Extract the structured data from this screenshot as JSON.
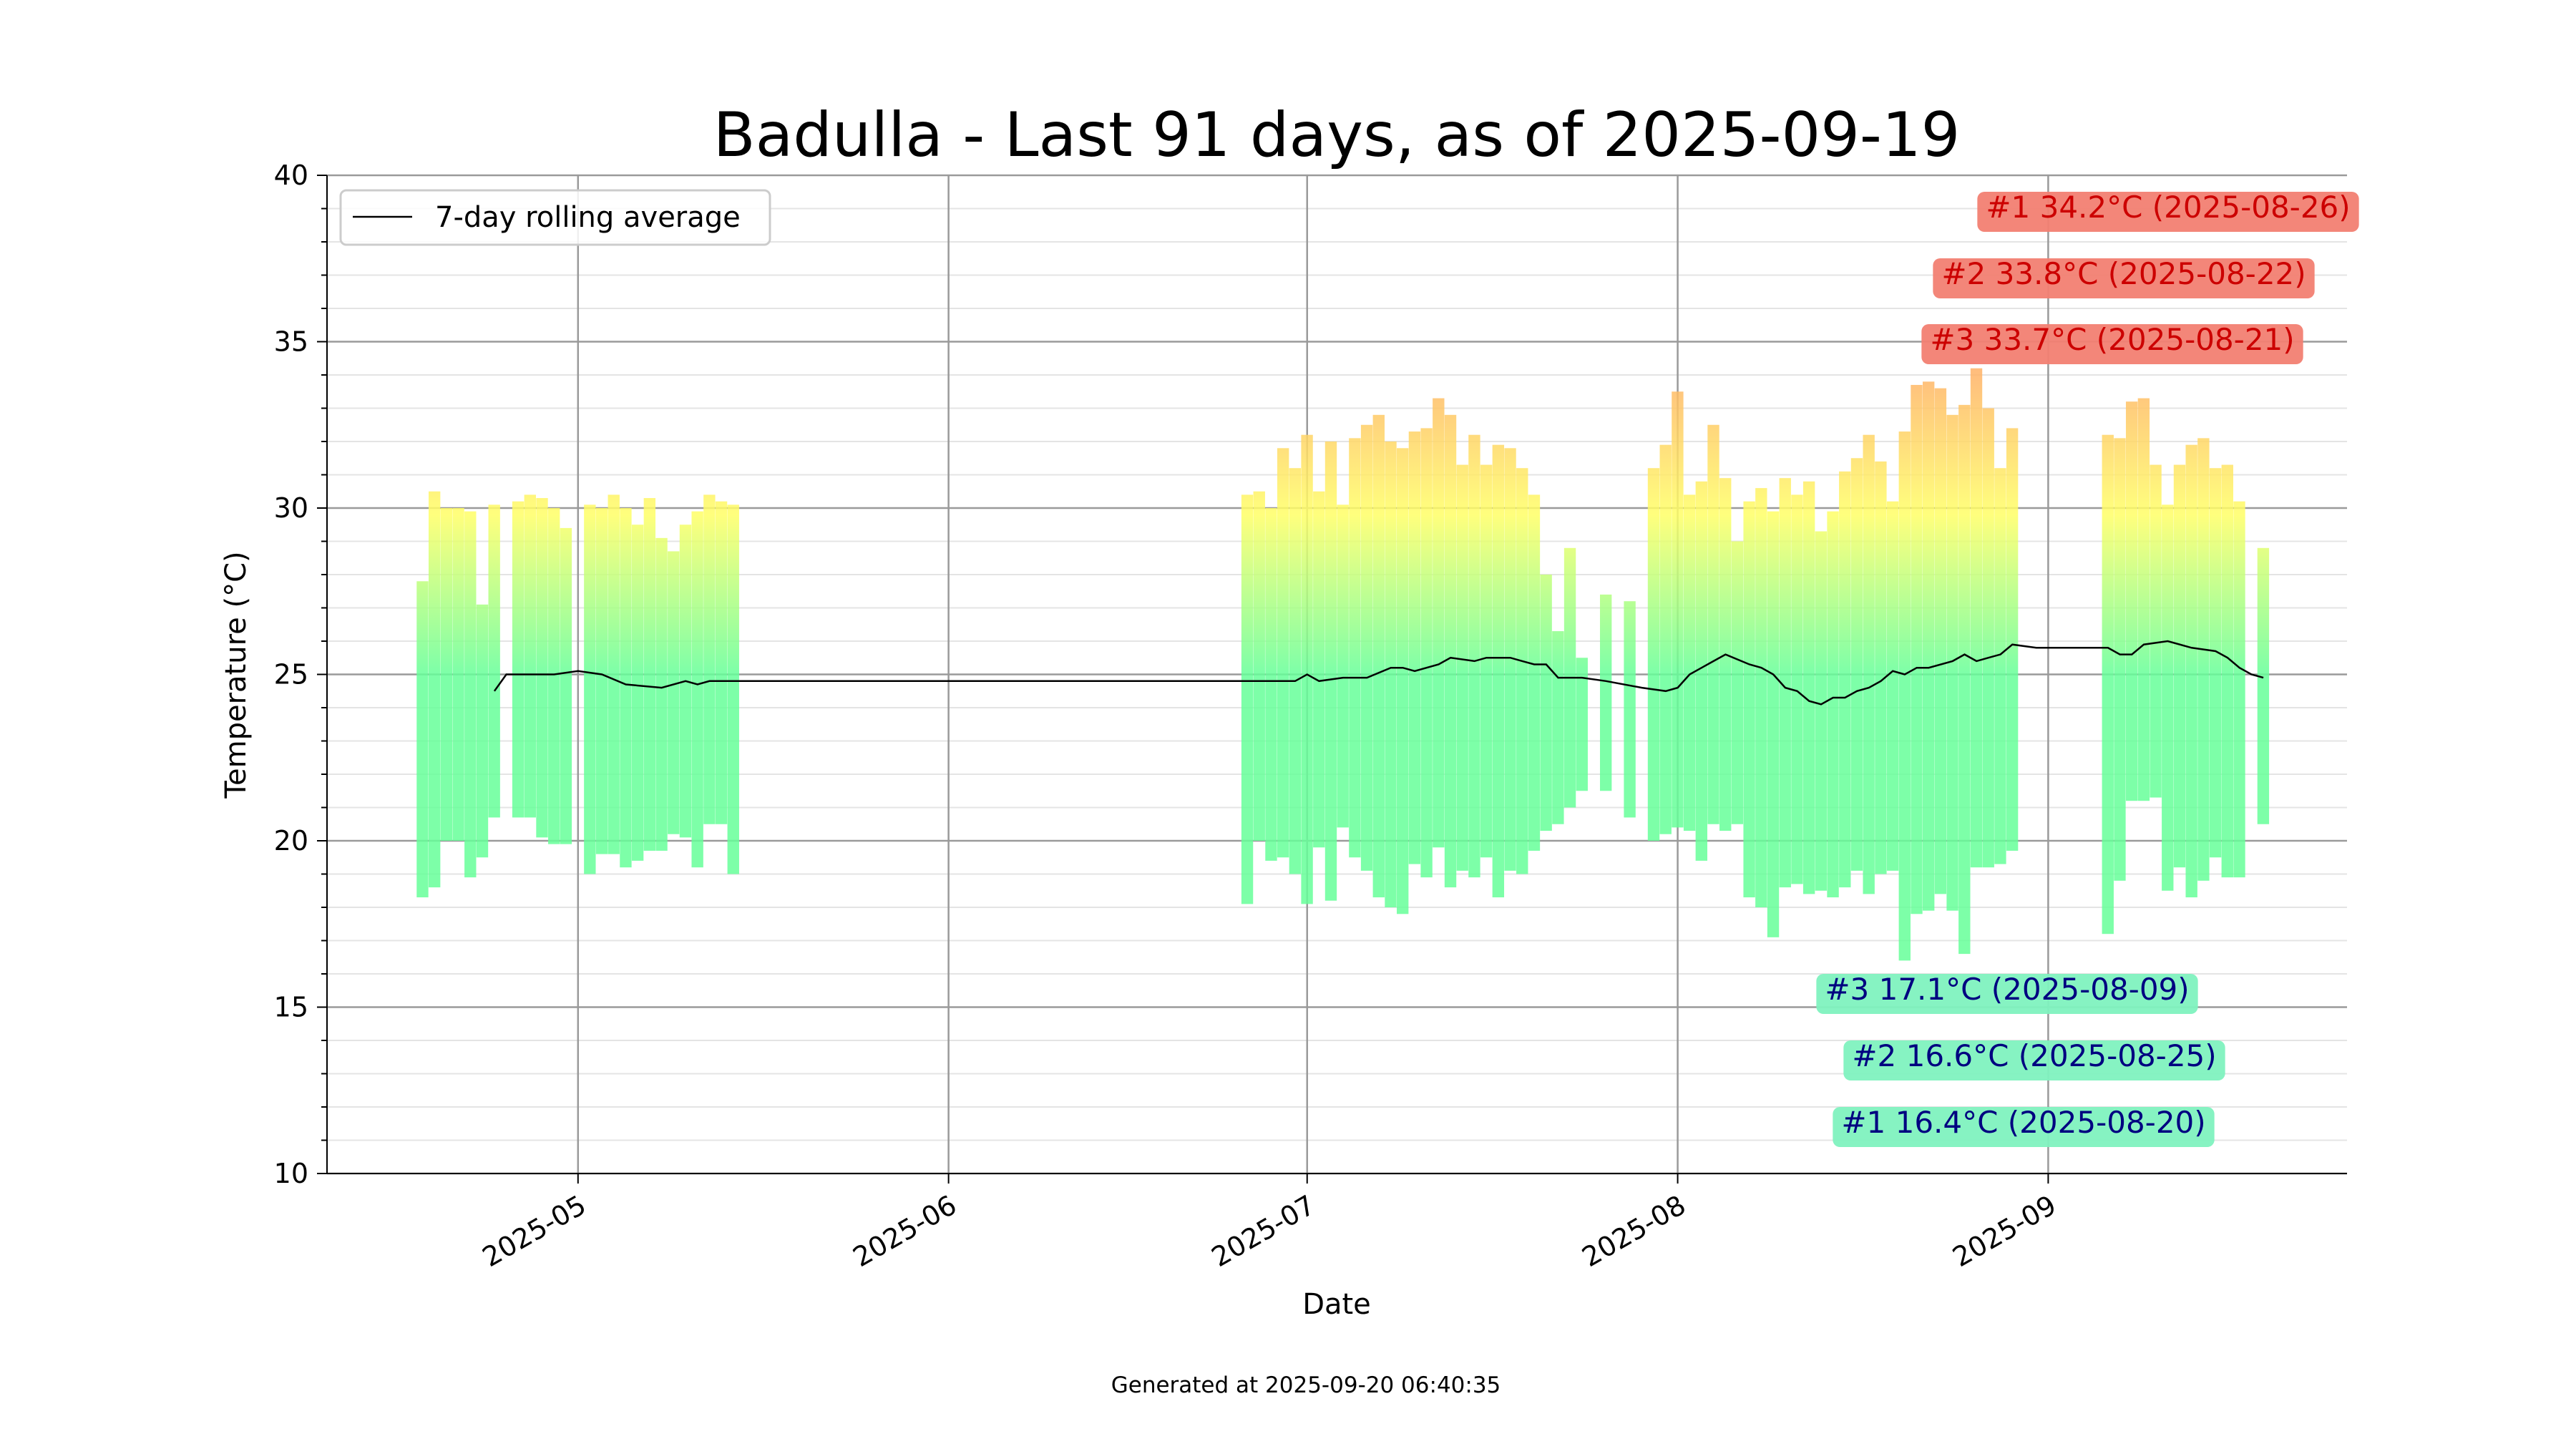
{
  "chart_data": {
    "type": "bar",
    "title": "Badulla - Last 91 days, as of 2025-09-19",
    "xlabel": "Date",
    "ylabel": "Temperature (°C)",
    "ylim": [
      10,
      40
    ],
    "y_major_ticks": [
      10,
      15,
      20,
      25,
      30,
      35,
      40
    ],
    "y_minor_step": 1,
    "x_start": "2025-04-10",
    "x_end": "2025-09-26",
    "x_ticks": [
      {
        "date": "2025-05-01",
        "label": "2025-05"
      },
      {
        "date": "2025-06-01",
        "label": "2025-06"
      },
      {
        "date": "2025-07-01",
        "label": "2025-07"
      },
      {
        "date": "2025-08-01",
        "label": "2025-08"
      },
      {
        "date": "2025-09-01",
        "label": "2025-09"
      }
    ],
    "grid": true,
    "legend": {
      "placement": "top-left",
      "entries": [
        "7-day rolling average"
      ]
    },
    "color_scale": {
      "cold": "#66ff99",
      "mild": "#ffff66",
      "warm": "#ffb366",
      "hot": "#ff7f66"
    },
    "annotation_colors": {
      "max_bg": "#f28072",
      "max_text": "#cc0000",
      "min_bg": "#7ff2bf",
      "min_text": "#000080"
    },
    "days": [
      {
        "date": "2025-04-18",
        "min": 18.3,
        "max": 27.8
      },
      {
        "date": "2025-04-19",
        "min": 18.6,
        "max": 30.5
      },
      {
        "date": "2025-04-20",
        "min": 20.0,
        "max": 30.0
      },
      {
        "date": "2025-04-21",
        "min": 20.0,
        "max": 30.0
      },
      {
        "date": "2025-04-22",
        "min": 18.9,
        "max": 29.9
      },
      {
        "date": "2025-04-23",
        "min": 19.5,
        "max": 27.1
      },
      {
        "date": "2025-04-24",
        "min": 20.7,
        "max": 30.1
      },
      {
        "date": "2025-04-26",
        "min": 20.7,
        "max": 30.2
      },
      {
        "date": "2025-04-27",
        "min": 20.7,
        "max": 30.4
      },
      {
        "date": "2025-04-28",
        "min": 20.1,
        "max": 30.3
      },
      {
        "date": "2025-04-29",
        "min": 19.9,
        "max": 30.0
      },
      {
        "date": "2025-04-30",
        "min": 19.9,
        "max": 29.4
      },
      {
        "date": "2025-05-02",
        "min": 19.0,
        "max": 30.1
      },
      {
        "date": "2025-05-03",
        "min": 19.6,
        "max": 30.0
      },
      {
        "date": "2025-05-04",
        "min": 19.6,
        "max": 30.4
      },
      {
        "date": "2025-05-05",
        "min": 19.2,
        "max": 30.0
      },
      {
        "date": "2025-05-06",
        "min": 19.4,
        "max": 29.5
      },
      {
        "date": "2025-05-07",
        "min": 19.7,
        "max": 30.3
      },
      {
        "date": "2025-05-08",
        "min": 19.7,
        "max": 29.1
      },
      {
        "date": "2025-05-09",
        "min": 20.2,
        "max": 28.7
      },
      {
        "date": "2025-05-10",
        "min": 20.1,
        "max": 29.5
      },
      {
        "date": "2025-05-11",
        "min": 19.2,
        "max": 29.9
      },
      {
        "date": "2025-05-12",
        "min": 20.5,
        "max": 30.4
      },
      {
        "date": "2025-05-13",
        "min": 20.5,
        "max": 30.2
      },
      {
        "date": "2025-05-14",
        "min": 19.0,
        "max": 30.1
      },
      {
        "date": "2025-06-26",
        "min": 18.1,
        "max": 30.4
      },
      {
        "date": "2025-06-27",
        "min": 20.0,
        "max": 30.5
      },
      {
        "date": "2025-06-28",
        "min": 19.4,
        "max": 30.0
      },
      {
        "date": "2025-06-29",
        "min": 19.5,
        "max": 31.8
      },
      {
        "date": "2025-06-30",
        "min": 19.0,
        "max": 31.2
      },
      {
        "date": "2025-07-01",
        "min": 18.1,
        "max": 32.2
      },
      {
        "date": "2025-07-02",
        "min": 19.8,
        "max": 30.5
      },
      {
        "date": "2025-07-03",
        "min": 18.2,
        "max": 32.0
      },
      {
        "date": "2025-07-04",
        "min": 20.4,
        "max": 30.1
      },
      {
        "date": "2025-07-05",
        "min": 19.5,
        "max": 32.1
      },
      {
        "date": "2025-07-06",
        "min": 19.1,
        "max": 32.5
      },
      {
        "date": "2025-07-07",
        "min": 18.3,
        "max": 32.8
      },
      {
        "date": "2025-07-08",
        "min": 18.0,
        "max": 32.0
      },
      {
        "date": "2025-07-09",
        "min": 17.8,
        "max": 31.8
      },
      {
        "date": "2025-07-10",
        "min": 19.3,
        "max": 32.3
      },
      {
        "date": "2025-07-11",
        "min": 18.9,
        "max": 32.4
      },
      {
        "date": "2025-07-12",
        "min": 19.8,
        "max": 33.3
      },
      {
        "date": "2025-07-13",
        "min": 18.6,
        "max": 32.8
      },
      {
        "date": "2025-07-14",
        "min": 19.1,
        "max": 31.3
      },
      {
        "date": "2025-07-15",
        "min": 18.9,
        "max": 32.2
      },
      {
        "date": "2025-07-16",
        "min": 19.5,
        "max": 31.3
      },
      {
        "date": "2025-07-17",
        "min": 18.3,
        "max": 31.9
      },
      {
        "date": "2025-07-18",
        "min": 19.1,
        "max": 31.8
      },
      {
        "date": "2025-07-19",
        "min": 19.0,
        "max": 31.2
      },
      {
        "date": "2025-07-20",
        "min": 19.7,
        "max": 30.4
      },
      {
        "date": "2025-07-21",
        "min": 20.3,
        "max": 28.0
      },
      {
        "date": "2025-07-22",
        "min": 20.5,
        "max": 26.3
      },
      {
        "date": "2025-07-23",
        "min": 21.0,
        "max": 28.8
      },
      {
        "date": "2025-07-24",
        "min": 21.5,
        "max": 25.5
      },
      {
        "date": "2025-07-26",
        "min": 21.5,
        "max": 27.4
      },
      {
        "date": "2025-07-28",
        "min": 20.7,
        "max": 27.2
      },
      {
        "date": "2025-07-30",
        "min": 20.0,
        "max": 31.2
      },
      {
        "date": "2025-07-31",
        "min": 20.2,
        "max": 31.9
      },
      {
        "date": "2025-08-01",
        "min": 20.4,
        "max": 33.5
      },
      {
        "date": "2025-08-02",
        "min": 20.3,
        "max": 30.4
      },
      {
        "date": "2025-08-03",
        "min": 19.4,
        "max": 30.8
      },
      {
        "date": "2025-08-04",
        "min": 20.5,
        "max": 32.5
      },
      {
        "date": "2025-08-05",
        "min": 20.3,
        "max": 30.9
      },
      {
        "date": "2025-08-06",
        "min": 20.5,
        "max": 29.0
      },
      {
        "date": "2025-08-07",
        "min": 18.3,
        "max": 30.2
      },
      {
        "date": "2025-08-08",
        "min": 18.0,
        "max": 30.6
      },
      {
        "date": "2025-08-09",
        "min": 17.1,
        "max": 29.9
      },
      {
        "date": "2025-08-10",
        "min": 18.6,
        "max": 30.9
      },
      {
        "date": "2025-08-11",
        "min": 18.7,
        "max": 30.4
      },
      {
        "date": "2025-08-12",
        "min": 18.4,
        "max": 30.8
      },
      {
        "date": "2025-08-13",
        "min": 18.5,
        "max": 29.3
      },
      {
        "date": "2025-08-14",
        "min": 18.3,
        "max": 29.9
      },
      {
        "date": "2025-08-15",
        "min": 18.6,
        "max": 31.1
      },
      {
        "date": "2025-08-16",
        "min": 19.1,
        "max": 31.5
      },
      {
        "date": "2025-08-17",
        "min": 18.4,
        "max": 32.2
      },
      {
        "date": "2025-08-18",
        "min": 19.0,
        "max": 31.4
      },
      {
        "date": "2025-08-19",
        "min": 19.1,
        "max": 30.2
      },
      {
        "date": "2025-08-20",
        "min": 16.4,
        "max": 32.3
      },
      {
        "date": "2025-08-21",
        "min": 17.8,
        "max": 33.7
      },
      {
        "date": "2025-08-22",
        "min": 17.9,
        "max": 33.8
      },
      {
        "date": "2025-08-23",
        "min": 18.4,
        "max": 33.6
      },
      {
        "date": "2025-08-24",
        "min": 17.9,
        "max": 32.8
      },
      {
        "date": "2025-08-25",
        "min": 16.6,
        "max": 33.1
      },
      {
        "date": "2025-08-26",
        "min": 19.2,
        "max": 34.2
      },
      {
        "date": "2025-08-27",
        "min": 19.2,
        "max": 33.0
      },
      {
        "date": "2025-08-28",
        "min": 19.3,
        "max": 31.2
      },
      {
        "date": "2025-08-29",
        "min": 19.7,
        "max": 32.4
      },
      {
        "date": "2025-09-06",
        "min": 17.2,
        "max": 32.2
      },
      {
        "date": "2025-09-07",
        "min": 18.8,
        "max": 32.1
      },
      {
        "date": "2025-09-08",
        "min": 21.2,
        "max": 33.2
      },
      {
        "date": "2025-09-09",
        "min": 21.2,
        "max": 33.3
      },
      {
        "date": "2025-09-10",
        "min": 21.3,
        "max": 31.3
      },
      {
        "date": "2025-09-11",
        "min": 18.5,
        "max": 30.1
      },
      {
        "date": "2025-09-12",
        "min": 19.2,
        "max": 31.3
      },
      {
        "date": "2025-09-13",
        "min": 18.3,
        "max": 31.9
      },
      {
        "date": "2025-09-14",
        "min": 18.8,
        "max": 32.1
      },
      {
        "date": "2025-09-15",
        "min": 19.5,
        "max": 31.2
      },
      {
        "date": "2025-09-16",
        "min": 18.9,
        "max": 31.3
      },
      {
        "date": "2025-09-17",
        "min": 18.9,
        "max": 30.2
      },
      {
        "date": "2025-09-19",
        "min": 20.5,
        "max": 28.8
      }
    ],
    "rolling_average": {
      "name": "7-day rolling average",
      "points": [
        [
          "2025-04-24",
          24.5
        ],
        [
          "2025-04-25",
          25.0
        ],
        [
          "2025-04-27",
          25.0
        ],
        [
          "2025-04-29",
          25.0
        ],
        [
          "2025-05-01",
          25.1
        ],
        [
          "2025-05-03",
          25.0
        ],
        [
          "2025-05-05",
          24.7
        ],
        [
          "2025-05-08",
          24.6
        ],
        [
          "2025-05-10",
          24.8
        ],
        [
          "2025-05-11",
          24.7
        ],
        [
          "2025-05-12",
          24.8
        ],
        [
          "2025-05-14",
          24.8
        ],
        [
          "2025-06-26",
          24.8
        ],
        [
          "2025-06-30",
          24.8
        ],
        [
          "2025-07-01",
          25.0
        ],
        [
          "2025-07-02",
          24.8
        ],
        [
          "2025-07-04",
          24.9
        ],
        [
          "2025-07-06",
          24.9
        ],
        [
          "2025-07-08",
          25.2
        ],
        [
          "2025-07-09",
          25.2
        ],
        [
          "2025-07-10",
          25.1
        ],
        [
          "2025-07-12",
          25.3
        ],
        [
          "2025-07-13",
          25.5
        ],
        [
          "2025-07-15",
          25.4
        ],
        [
          "2025-07-16",
          25.5
        ],
        [
          "2025-07-18",
          25.5
        ],
        [
          "2025-07-19",
          25.4
        ],
        [
          "2025-07-20",
          25.3
        ],
        [
          "2025-07-21",
          25.3
        ],
        [
          "2025-07-22",
          24.9
        ],
        [
          "2025-07-24",
          24.9
        ],
        [
          "2025-07-26",
          24.8
        ],
        [
          "2025-07-29",
          24.6
        ],
        [
          "2025-07-31",
          24.5
        ],
        [
          "2025-08-01",
          24.6
        ],
        [
          "2025-08-02",
          25.0
        ],
        [
          "2025-08-03",
          25.2
        ],
        [
          "2025-08-04",
          25.4
        ],
        [
          "2025-08-05",
          25.6
        ],
        [
          "2025-08-07",
          25.3
        ],
        [
          "2025-08-08",
          25.2
        ],
        [
          "2025-08-09",
          25.0
        ],
        [
          "2025-08-10",
          24.6
        ],
        [
          "2025-08-11",
          24.5
        ],
        [
          "2025-08-12",
          24.2
        ],
        [
          "2025-08-13",
          24.1
        ],
        [
          "2025-08-14",
          24.3
        ],
        [
          "2025-08-15",
          24.3
        ],
        [
          "2025-08-16",
          24.5
        ],
        [
          "2025-08-17",
          24.6
        ],
        [
          "2025-08-18",
          24.8
        ],
        [
          "2025-08-19",
          25.1
        ],
        [
          "2025-08-20",
          25.0
        ],
        [
          "2025-08-21",
          25.2
        ],
        [
          "2025-08-22",
          25.2
        ],
        [
          "2025-08-24",
          25.4
        ],
        [
          "2025-08-25",
          25.6
        ],
        [
          "2025-08-26",
          25.4
        ],
        [
          "2025-08-27",
          25.5
        ],
        [
          "2025-08-28",
          25.6
        ],
        [
          "2025-08-29",
          25.9
        ],
        [
          "2025-08-31",
          25.8
        ],
        [
          "2025-09-02",
          25.8
        ],
        [
          "2025-09-06",
          25.8
        ],
        [
          "2025-09-07",
          25.6
        ],
        [
          "2025-09-08",
          25.6
        ],
        [
          "2025-09-09",
          25.9
        ],
        [
          "2025-09-11",
          26.0
        ],
        [
          "2025-09-13",
          25.8
        ],
        [
          "2025-09-15",
          25.7
        ],
        [
          "2025-09-16",
          25.5
        ],
        [
          "2025-09-17",
          25.2
        ],
        [
          "2025-09-18",
          25.0
        ],
        [
          "2025-09-19",
          24.9
        ]
      ]
    },
    "annotations": {
      "max": [
        {
          "label": "#1 34.2°C (2025-08-26)",
          "value": 34.2,
          "date": "2025-08-26"
        },
        {
          "label": "#2 33.8°C (2025-08-22)",
          "value": 33.8,
          "date": "2025-08-22"
        },
        {
          "label": "#3 33.7°C (2025-08-21)",
          "value": 33.7,
          "date": "2025-08-21"
        }
      ],
      "min": [
        {
          "label": "#3 17.1°C (2025-08-09)",
          "value": 17.1,
          "date": "2025-08-09"
        },
        {
          "label": "#2 16.6°C (2025-08-25)",
          "value": 16.6,
          "date": "2025-08-25"
        },
        {
          "label": "#1 16.4°C (2025-08-20)",
          "value": 16.4,
          "date": "2025-08-20"
        }
      ]
    },
    "footer": "Generated at 2025-09-20 06:40:35"
  }
}
